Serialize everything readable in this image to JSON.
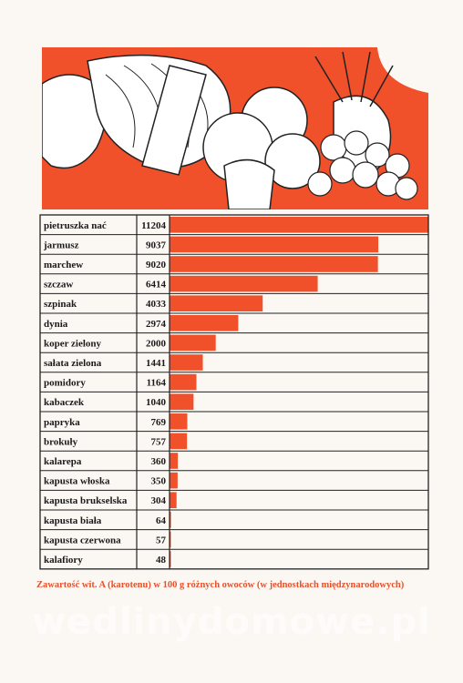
{
  "chart_data": {
    "type": "bar",
    "orientation": "horizontal",
    "categories": [
      "pietruszka nać",
      "jarmusz",
      "marchew",
      "szczaw",
      "szpinak",
      "dynia",
      "koper zielony",
      "sałata zielona",
      "pomidory",
      "kabaczek",
      "papryka",
      "brokuły",
      "kalarepa",
      "kapusta włoska",
      "kapusta brukselska",
      "kapusta biała",
      "kapusta czerwona",
      "kalafiory"
    ],
    "values": [
      11204,
      9037,
      9020,
      6414,
      4033,
      2974,
      2000,
      1441,
      1164,
      1040,
      769,
      757,
      360,
      350,
      304,
      64,
      57,
      48
    ],
    "value_labels": [
      "11204",
      "9037",
      "9020",
      "6414",
      "4033",
      "2974",
      "2000",
      "1441",
      "1164",
      "1040",
      "769",
      "757",
      "360",
      "350",
      "304",
      "64",
      "57",
      "48"
    ],
    "xlim": [
      0,
      11204
    ],
    "bar_color": "#f0502a",
    "grid": true
  },
  "caption": "Zawartość wit. A (karotenu) w 100 g różnych owoców (w jednostkach międzynarodowych)",
  "watermark": "wedlinydomowe.pl",
  "colors": {
    "accent": "#f0502a",
    "line": "#222222",
    "paper": "#fbf8f4"
  }
}
